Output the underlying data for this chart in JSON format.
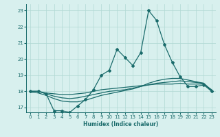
{
  "xlabel": "Humidex (Indice chaleur)",
  "background_color": "#d8f0ee",
  "grid_color": "#b0d8d4",
  "line_color": "#1a6b6b",
  "xlim": [
    -0.5,
    23.5
  ],
  "ylim": [
    16.7,
    23.4
  ],
  "yticks": [
    17,
    18,
    19,
    20,
    21,
    22,
    23
  ],
  "xticks": [
    0,
    1,
    2,
    3,
    4,
    5,
    6,
    7,
    8,
    9,
    10,
    11,
    12,
    13,
    14,
    15,
    16,
    17,
    18,
    19,
    20,
    21,
    22,
    23
  ],
  "line1_x": [
    0,
    1,
    2,
    3,
    4,
    5,
    6,
    7,
    8,
    9,
    10,
    11,
    12,
    13,
    14,
    15,
    16,
    17,
    18,
    19,
    20,
    21,
    22,
    23
  ],
  "line1_y": [
    18.0,
    18.0,
    17.85,
    16.8,
    16.8,
    16.7,
    17.1,
    17.5,
    18.1,
    19.0,
    19.3,
    20.6,
    20.1,
    19.6,
    20.4,
    23.0,
    22.4,
    20.9,
    19.8,
    18.9,
    18.3,
    18.3,
    18.4,
    18.0
  ],
  "line2_x": [
    0,
    1,
    2,
    3,
    4,
    5,
    6,
    7,
    8,
    9,
    10,
    11,
    12,
    13,
    14,
    15,
    16,
    17,
    18,
    19,
    20,
    21,
    22,
    23
  ],
  "line2_y": [
    18.0,
    18.0,
    17.9,
    17.85,
    17.8,
    17.8,
    17.85,
    17.9,
    18.0,
    18.1,
    18.15,
    18.2,
    18.25,
    18.3,
    18.35,
    18.4,
    18.45,
    18.45,
    18.45,
    18.5,
    18.45,
    18.45,
    18.45,
    18.1
  ],
  "line3_x": [
    0,
    1,
    2,
    3,
    4,
    5,
    6,
    7,
    8,
    9,
    10,
    11,
    12,
    13,
    14,
    15,
    16,
    17,
    18,
    19,
    20,
    21,
    22,
    23
  ],
  "line3_y": [
    18.0,
    18.0,
    17.85,
    17.7,
    17.6,
    17.55,
    17.6,
    17.7,
    17.8,
    17.9,
    18.0,
    18.05,
    18.1,
    18.2,
    18.3,
    18.4,
    18.5,
    18.55,
    18.6,
    18.65,
    18.6,
    18.55,
    18.5,
    18.05
  ],
  "line4_x": [
    0,
    1,
    2,
    3,
    4,
    5,
    6,
    7,
    8,
    9,
    10,
    11,
    12,
    13,
    14,
    15,
    16,
    17,
    18,
    19,
    20,
    21,
    22,
    23
  ],
  "line4_y": [
    17.95,
    17.9,
    17.75,
    17.55,
    17.4,
    17.35,
    17.35,
    17.45,
    17.6,
    17.75,
    17.85,
    17.95,
    18.05,
    18.15,
    18.3,
    18.5,
    18.65,
    18.75,
    18.8,
    18.8,
    18.7,
    18.6,
    18.5,
    18.0
  ]
}
